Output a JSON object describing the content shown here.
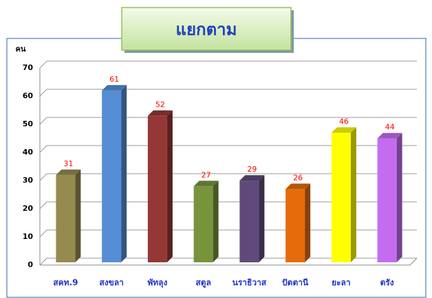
{
  "chart_data": {
    "type": "bar",
    "title": "แยกตาม",
    "y_label": "คน",
    "categories": [
      "สคท.9",
      "สงขลา",
      "พัทลุง",
      "สตูล",
      "นราธิวาส",
      "ปัตตานี",
      "ยะลา",
      "ตรัง"
    ],
    "values": [
      31,
      61,
      52,
      27,
      29,
      26,
      46,
      44
    ],
    "colors": [
      "#958b4f",
      "#558ed5",
      "#953735",
      "#77933c",
      "#604a7b",
      "#e46c0a",
      "#ffff00",
      "#c36cf0"
    ],
    "ylim": [
      0,
      70
    ],
    "yticks": [
      0,
      10,
      20,
      30,
      40,
      50,
      60,
      70
    ],
    "grid": true
  }
}
